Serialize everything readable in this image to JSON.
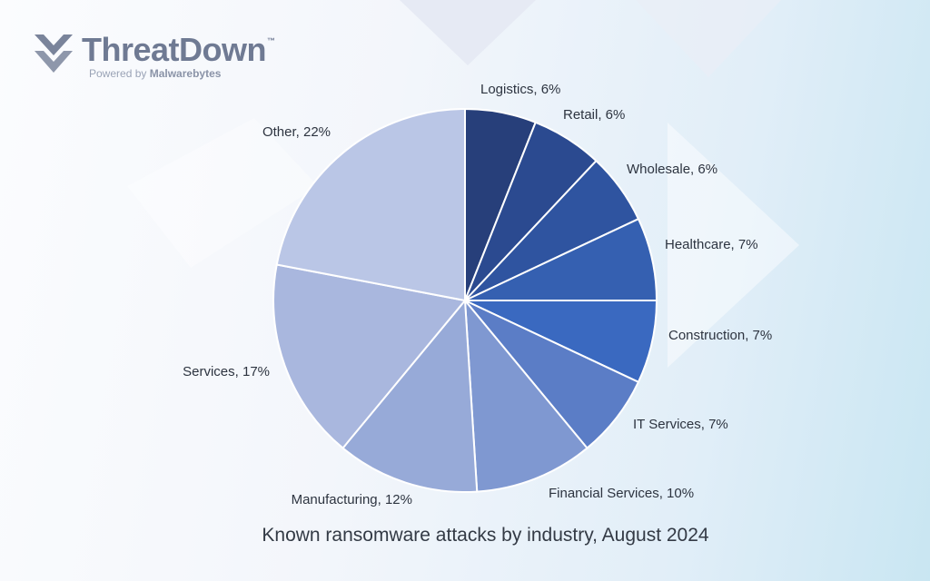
{
  "branding": {
    "name": "ThreatDown",
    "trademark": "™",
    "powered_by": "Powered by",
    "partner": "Malwarebytes"
  },
  "chart_data": {
    "type": "pie",
    "title": "Known ransomware attacks by industry, August 2024",
    "unit": "%",
    "slices": [
      {
        "label": "Logistics",
        "value": 6,
        "color": "#273f7a"
      },
      {
        "label": "Retail",
        "value": 6,
        "color": "#2b4a90"
      },
      {
        "label": "Wholesale",
        "value": 6,
        "color": "#2f54a0"
      },
      {
        "label": "Healthcare",
        "value": 7,
        "color": "#3560b1"
      },
      {
        "label": "Construction",
        "value": 7,
        "color": "#3a69c0"
      },
      {
        "label": "IT Services",
        "value": 7,
        "color": "#5b7dc6"
      },
      {
        "label": "Financial Services",
        "value": 10,
        "color": "#7f98d1"
      },
      {
        "label": "Manufacturing",
        "value": 12,
        "color": "#97aad8"
      },
      {
        "label": "Services",
        "value": 17,
        "color": "#a9b7de"
      },
      {
        "label": "Other",
        "value": 22,
        "color": "#bac6e6"
      }
    ]
  }
}
